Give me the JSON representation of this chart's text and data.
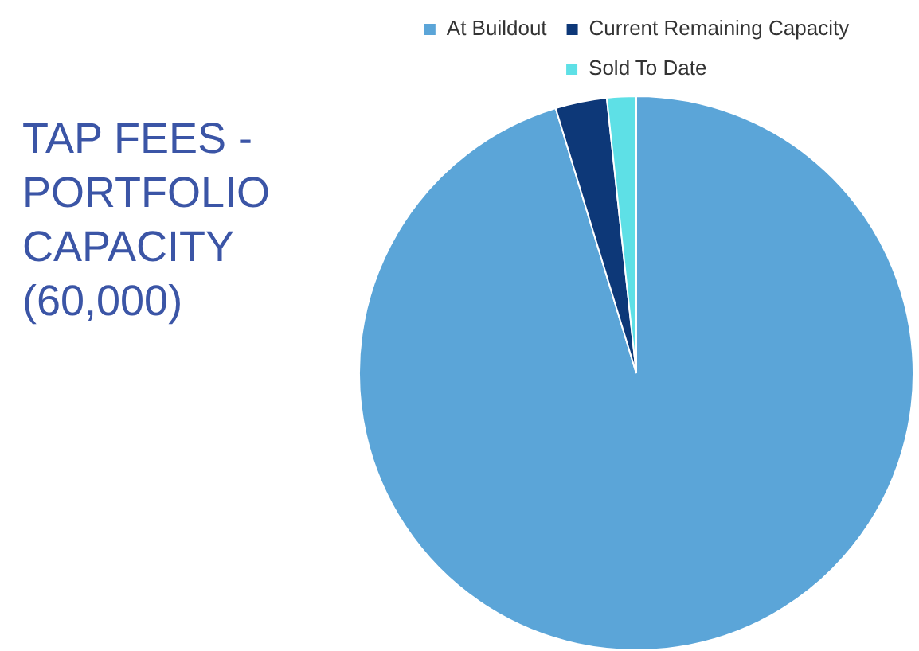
{
  "chart_data": {
    "type": "pie",
    "title": "TAP FEES - PORTFOLIO CAPACITY (60,000)",
    "categories": [
      "At Buildout",
      "Current Remaining Capacity",
      "Sold To Date"
    ],
    "values": [
      95.3,
      3,
      1.7
    ],
    "colors": [
      "#5ba5d8",
      "#0d3878",
      "#5ee0e6"
    ],
    "legend": "top"
  }
}
